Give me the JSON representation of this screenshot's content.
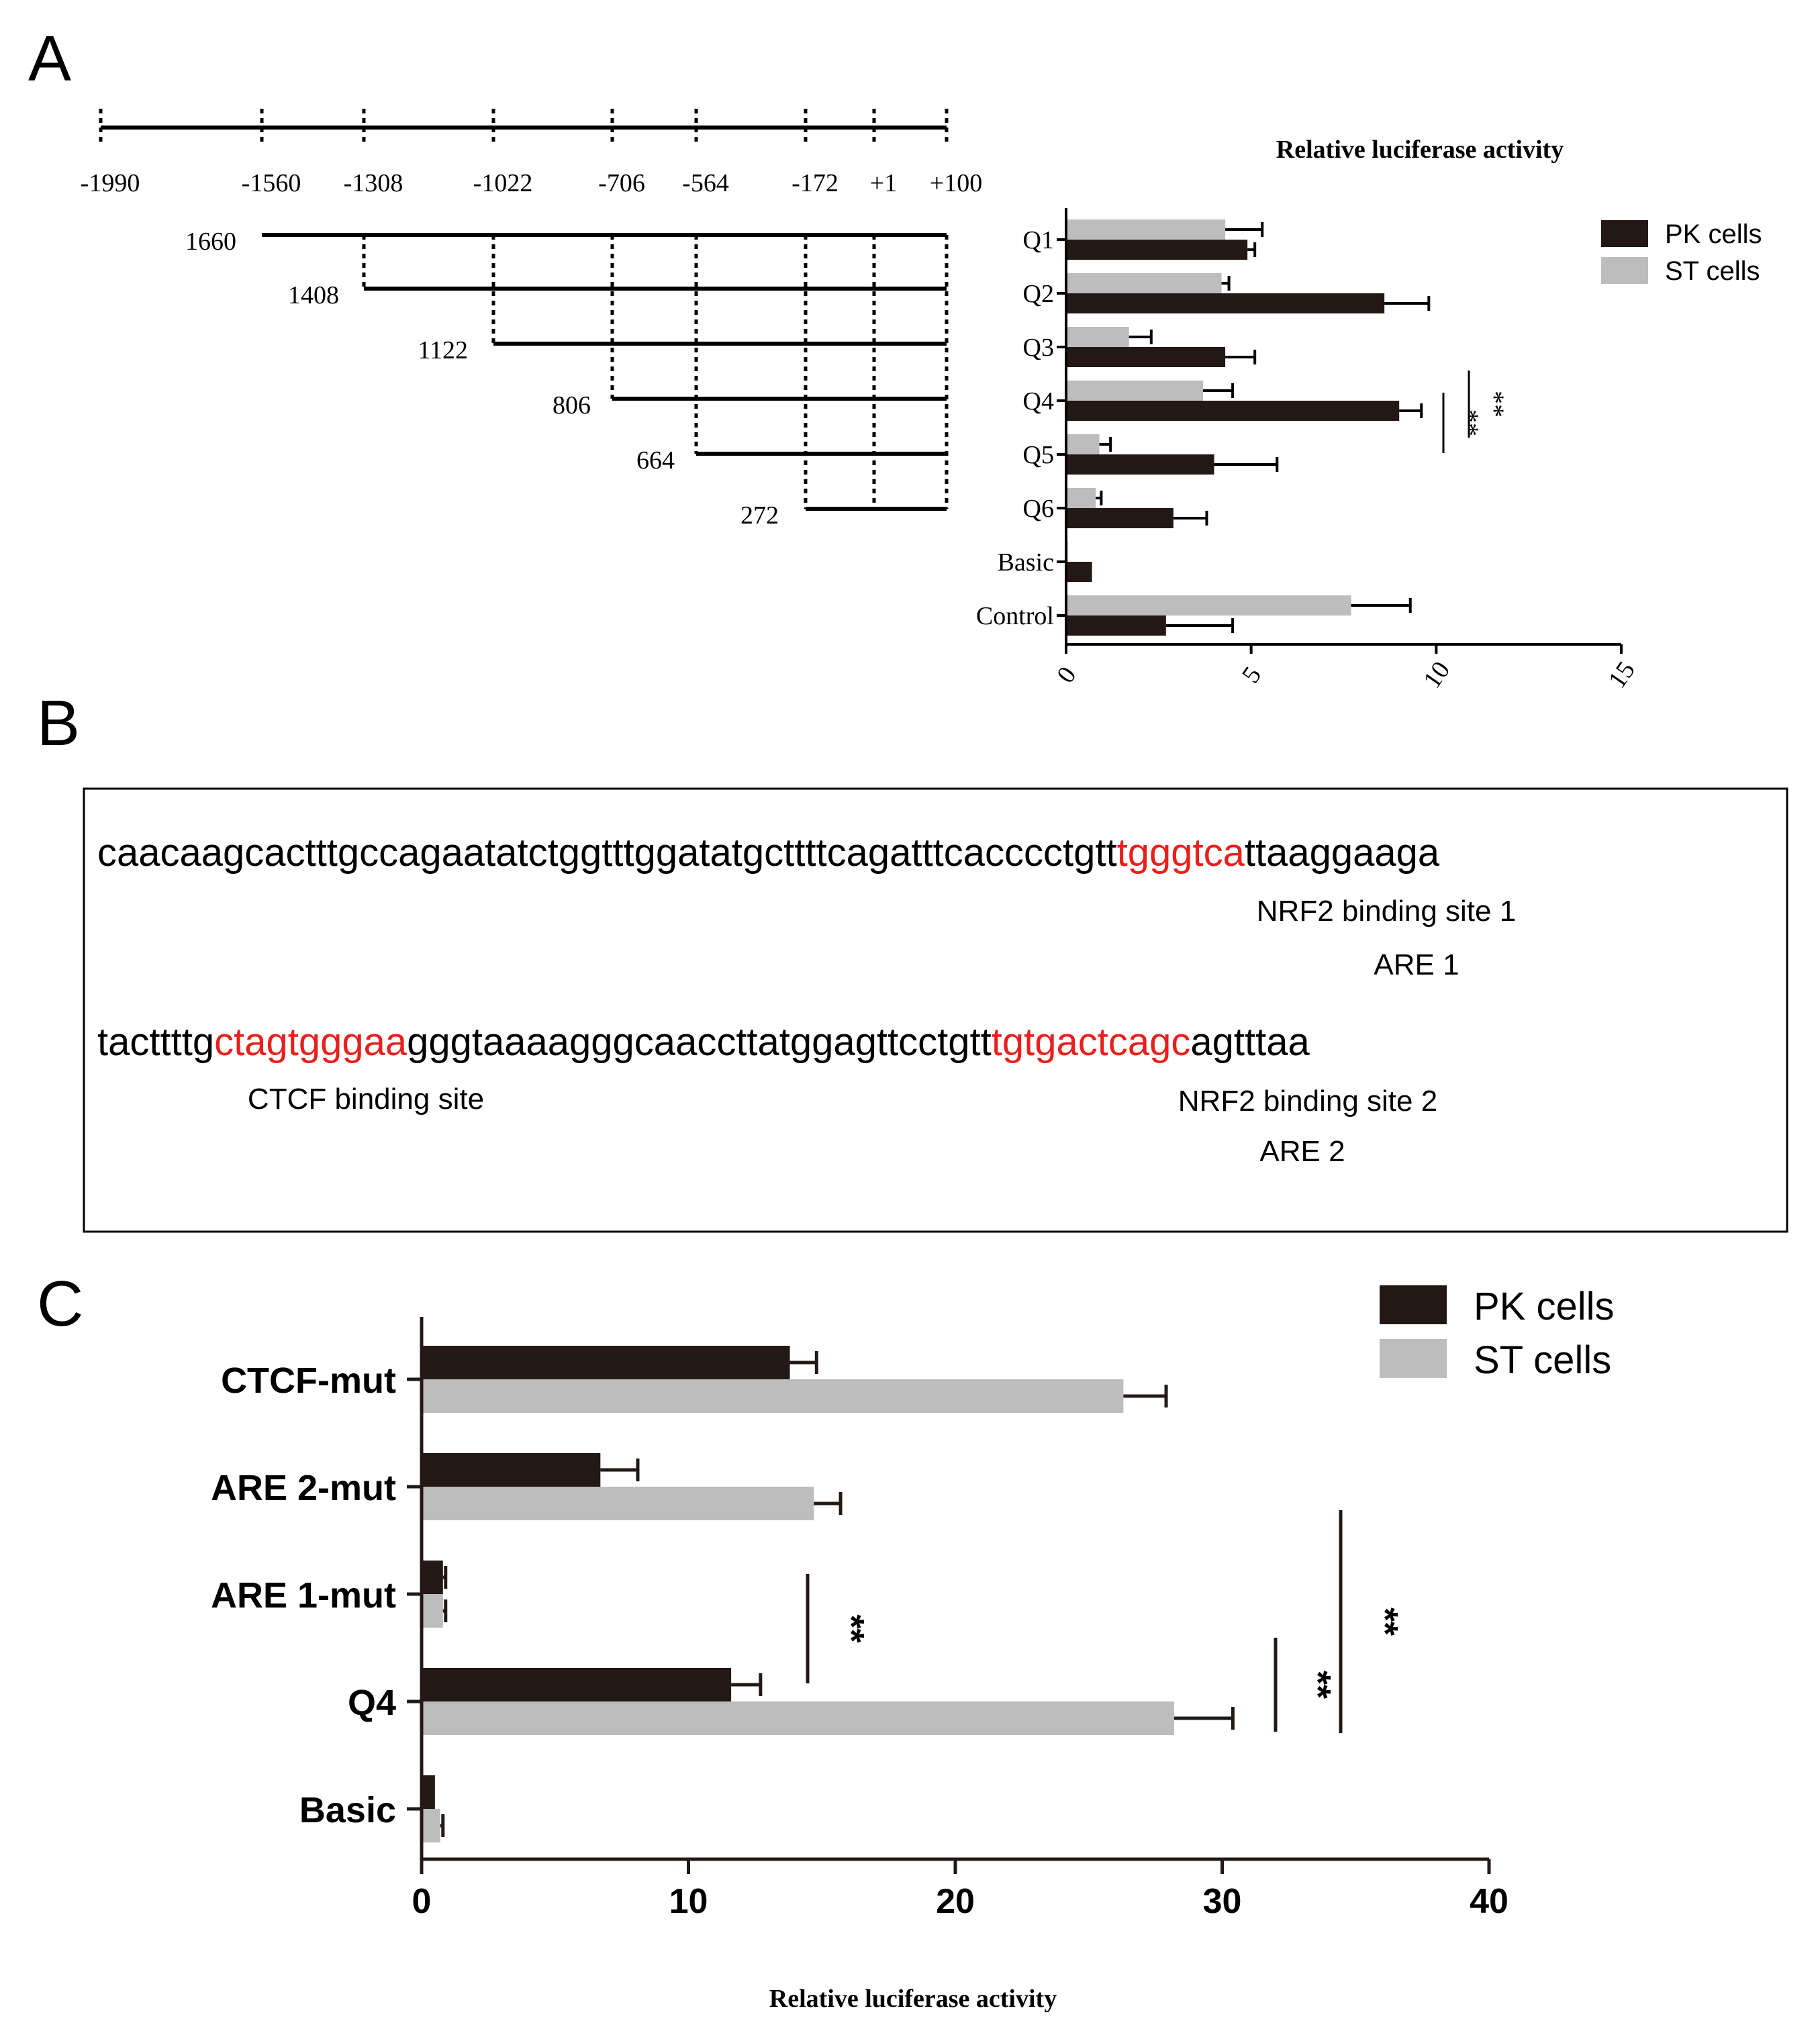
{
  "panels": {
    "A": {
      "letter": "A",
      "construct_map": {
        "positions": [
          "-1990",
          "-1560",
          "-1308",
          "-1022",
          "-706",
          "-564",
          "-172",
          "+1",
          "+100"
        ],
        "fragments": [
          {
            "length": "1660",
            "start": "-1560"
          },
          {
            "length": "1408",
            "start": "-1308"
          },
          {
            "length": "1122",
            "start": "-1022"
          },
          {
            "length": "806",
            "start": "-706"
          },
          {
            "length": "664",
            "start": "-564"
          },
          {
            "length": "272",
            "start": "-172"
          }
        ]
      }
    },
    "B": {
      "letter": "B",
      "line1": [
        {
          "text": "caacaagcactttgccagaatatctggtttggatatgcttttcagatttcacccctgtt",
          "highlight": false
        },
        {
          "text": "tgggtca",
          "highlight": true
        },
        {
          "text": "ttaaggaaga",
          "highlight": false
        }
      ],
      "line1_labels": [
        "NRF2 binding site 1",
        "ARE 1"
      ],
      "line2": [
        {
          "text": "tacttttg",
          "highlight": false
        },
        {
          "text": "ctagtgggaa",
          "highlight": true
        },
        {
          "text": "gggtaaaagggcaaccttatggagttcctgtt",
          "highlight": false
        },
        {
          "text": "tgtgactcagc",
          "highlight": true
        },
        {
          "text": "agtttaa",
          "highlight": false
        }
      ],
      "line2_labels": [
        "CTCF binding site",
        "NRF2 binding site 2",
        "ARE 2"
      ],
      "highlight_color": "#e8201c"
    },
    "C": {
      "letter": "C"
    }
  },
  "chart_data": [
    {
      "type": "bar",
      "orientation": "horizontal",
      "title": "Relative luciferase activity",
      "categories": [
        "Q1",
        "Q2",
        "Q3",
        "Q4",
        "Q5",
        "Q6",
        "Basic",
        "Control"
      ],
      "series": [
        {
          "name": "PK cells",
          "color": "#231815",
          "values": [
            4.9,
            8.6,
            4.3,
            9.0,
            4.0,
            2.9,
            0.7,
            2.7
          ],
          "errors": [
            0.2,
            1.2,
            0.8,
            0.6,
            1.7,
            0.9,
            0.0,
            1.8
          ]
        },
        {
          "name": "ST cells",
          "color": "#bdbdbd",
          "values": [
            4.3,
            4.2,
            1.7,
            3.7,
            0.9,
            0.8,
            0.05,
            7.7
          ],
          "errors": [
            1.0,
            0.2,
            0.6,
            0.8,
            0.3,
            0.15,
            0.0,
            1.6
          ]
        }
      ],
      "xlim": [
        0,
        15
      ],
      "xticks": [
        "0",
        "5",
        "10",
        "15"
      ],
      "significance": [
        "**",
        "**"
      ],
      "legend": "top-right"
    },
    {
      "type": "bar",
      "orientation": "horizontal",
      "xlabel": "Relative luciferase activity",
      "categories": [
        "CTCF-mut",
        "ARE 2-mut",
        "ARE 1-mut",
        "Q4",
        "Basic"
      ],
      "series": [
        {
          "name": "PK cells",
          "color": "#231815",
          "values": [
            13.8,
            6.7,
            0.8,
            11.6,
            0.5
          ],
          "errors": [
            1.0,
            1.4,
            0.1,
            1.1,
            0.0
          ]
        },
        {
          "name": "ST cells",
          "color": "#bdbdbd",
          "values": [
            26.3,
            14.7,
            0.8,
            28.2,
            0.7
          ],
          "errors": [
            1.6,
            1.0,
            0.1,
            2.2,
            0.1
          ]
        }
      ],
      "xlim": [
        0,
        40
      ],
      "xticks": [
        "0",
        "10",
        "20",
        "30",
        "40"
      ],
      "significance": [
        "**",
        "**",
        "**"
      ],
      "legend": "top-right"
    }
  ]
}
